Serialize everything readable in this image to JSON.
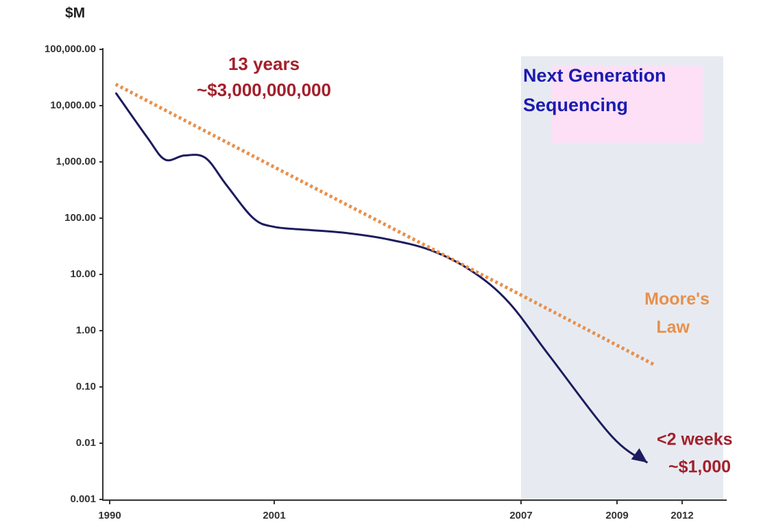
{
  "chart_data": {
    "type": "line",
    "ylabel": "$M",
    "log_y": true,
    "ylim": [
      0.001,
      100000
    ],
    "yticks": [
      {
        "value": 100000,
        "label": "100,000.00"
      },
      {
        "value": 10000,
        "label": "10,000.00"
      },
      {
        "value": 1000,
        "label": "1,000.00"
      },
      {
        "value": 100,
        "label": "100.00"
      },
      {
        "value": 10,
        "label": "10.00"
      },
      {
        "value": 1,
        "label": "1.00"
      },
      {
        "value": 0.1,
        "label": "0.10"
      },
      0.01,
      0.001
    ],
    "xticks": [
      1990,
      2001,
      2007,
      2009,
      2012
    ],
    "series": [
      {
        "color": "#1c1c5e",
        "style": "solid",
        "x": [
          1990.4,
          1992.5,
          1993.7,
          1995.0,
          1996.4,
          1997.8,
          1999.6,
          2001,
          2001.8,
          2002.7,
          2003.7,
          2004.8,
          2005.8,
          2006.7,
          2007.6,
          2008.9,
          2010.4
        ],
        "values": [
          17000,
          2750,
          1100,
          1300,
          1180,
          390,
          100,
          70,
          62,
          55,
          43,
          27,
          11.5,
          3.2,
          0.35,
          0.013,
          0.0045
        ]
      },
      {
        "name": "Moore's Law",
        "color": "#e8904c",
        "style": "dotted",
        "x": [
          1990.4,
          2001,
          2007,
          2009,
          2010.7
        ],
        "values": [
          24000,
          810,
          4.3,
          0.55,
          0.25
        ]
      }
    ],
    "annotations": [
      "13 years",
      "~$3,000,000,000",
      "Next Generation",
      "Sequencing",
      "<2 weeks",
      "~$1,000"
    ]
  }
}
